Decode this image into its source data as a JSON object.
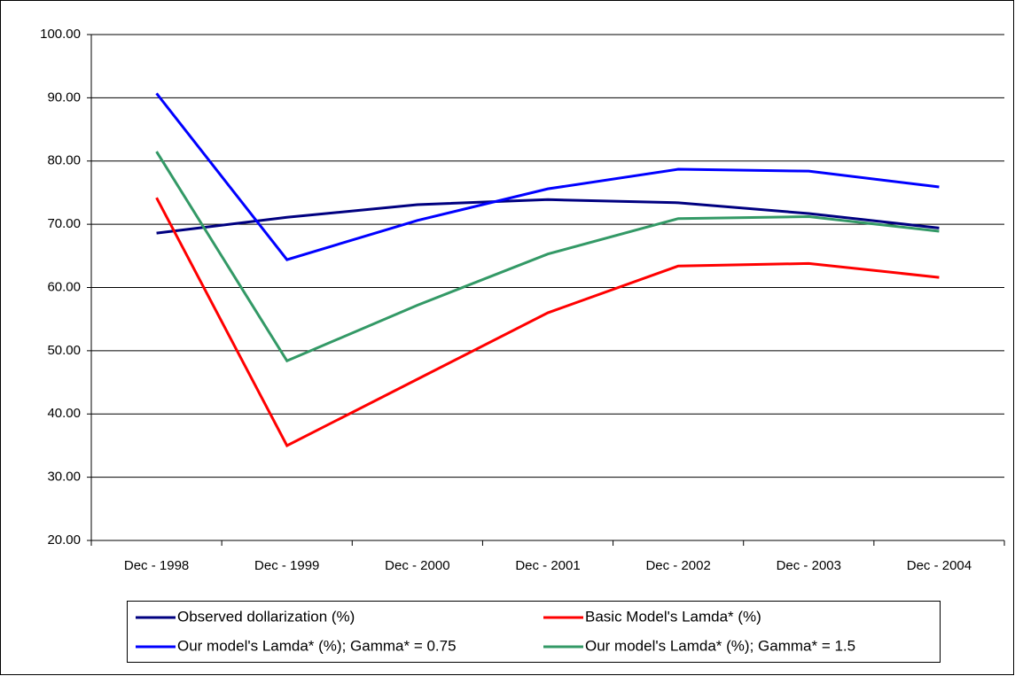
{
  "chart_data": {
    "type": "line",
    "categories": [
      "Dec - 1998",
      "Dec - 1999",
      "Dec - 2000",
      "Dec - 2001",
      "Dec - 2002",
      "Dec - 2003",
      "Dec - 2004"
    ],
    "series": [
      {
        "name": "Observed dollarization (%)",
        "color": "#000080",
        "values": [
          68.6,
          71.1,
          73.1,
          73.9,
          73.4,
          71.7,
          69.4
        ]
      },
      {
        "name": "Basic Model's Lamda* (%)",
        "color": "#ff0000",
        "values": [
          74.2,
          35.0,
          45.5,
          56.0,
          63.4,
          63.8,
          61.6
        ]
      },
      {
        "name": "Our model's Lamda* (%); Gamma* = 0.75",
        "color": "#0000ff",
        "values": [
          90.7,
          64.4,
          70.6,
          75.6,
          78.7,
          78.4,
          75.9
        ]
      },
      {
        "name": "Our model's Lamda* (%); Gamma* = 1.5",
        "color": "#339966",
        "values": [
          81.5,
          48.4,
          57.2,
          65.3,
          70.9,
          71.2,
          68.9
        ]
      }
    ],
    "ylim": [
      20,
      100
    ],
    "yticks": [
      {
        "value": 20,
        "label": "20.00"
      },
      {
        "value": 30,
        "label": "30.00"
      },
      {
        "value": 40,
        "label": "40.00"
      },
      {
        "value": 50,
        "label": "50.00"
      },
      {
        "value": 60,
        "label": "60.00"
      },
      {
        "value": 70,
        "label": "70.00"
      },
      {
        "value": 80,
        "label": "80.00"
      },
      {
        "value": 90,
        "label": "90.00"
      },
      {
        "value": 100,
        "label": "100.00"
      }
    ],
    "grid": true,
    "legend": "bottom"
  }
}
